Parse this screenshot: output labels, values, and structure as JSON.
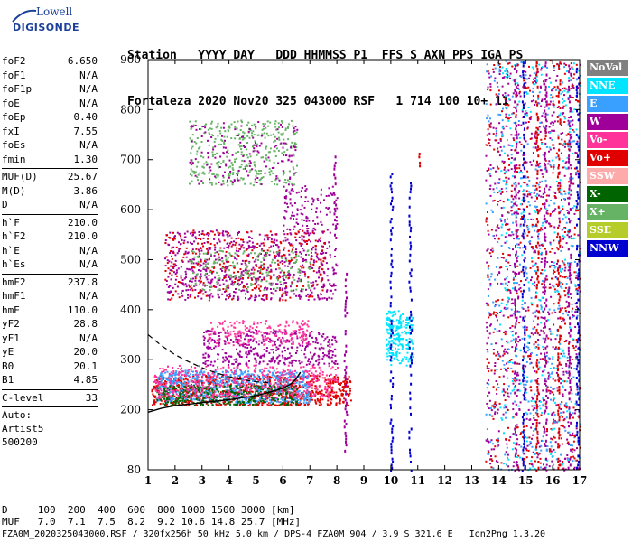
{
  "logo": {
    "top": "Lowell",
    "brand": "DIGISONDE"
  },
  "header": {
    "line1": "Station   YYYY DAY   DDD HHMMSS P1  FFS S AXN PPS IGA PS",
    "line2": "Fortaleza 2020 Nov20 325 043000 RSF   1 714 100 10+ 11"
  },
  "params": {
    "group1": [
      {
        "k": "foF2",
        "v": "6.650"
      },
      {
        "k": "foF1",
        "v": "N/A"
      },
      {
        "k": "foF1p",
        "v": "N/A"
      },
      {
        "k": "foE",
        "v": "N/A"
      },
      {
        "k": "foEp",
        "v": "0.40"
      },
      {
        "k": "fxI",
        "v": "7.55"
      },
      {
        "k": "foEs",
        "v": "N/A"
      },
      {
        "k": "fmin",
        "v": "1.30"
      }
    ],
    "group2": [
      {
        "k": "MUF(D)",
        "v": "25.67"
      },
      {
        "k": "M(D)",
        "v": "3.86"
      },
      {
        "k": "D",
        "v": "N/A"
      }
    ],
    "group3": [
      {
        "k": "h`F",
        "v": "210.0"
      },
      {
        "k": "h`F2",
        "v": "210.0"
      },
      {
        "k": "h`E",
        "v": "N/A"
      },
      {
        "k": "h`Es",
        "v": "N/A"
      }
    ],
    "group4": [
      {
        "k": "hmF2",
        "v": "237.8"
      },
      {
        "k": "hmF1",
        "v": "N/A"
      },
      {
        "k": "hmE",
        "v": "110.0"
      },
      {
        "k": "yF2",
        "v": "28.8"
      },
      {
        "k": "yF1",
        "v": "N/A"
      },
      {
        "k": "yE",
        "v": "20.0"
      },
      {
        "k": "B0",
        "v": "20.1"
      },
      {
        "k": "B1",
        "v": "4.85"
      }
    ],
    "clevel": {
      "k": "C-level",
      "v": "33"
    },
    "auto": [
      "Auto:",
      "Artist5",
      "500200"
    ]
  },
  "legend": [
    {
      "label": "NoVal",
      "color": "#808080"
    },
    {
      "label": "NNE",
      "color": "#00e5ff"
    },
    {
      "label": "E",
      "color": "#3aa0ff"
    },
    {
      "label": "W",
      "color": "#a0009a"
    },
    {
      "label": "Vo-",
      "color": "#ff3399"
    },
    {
      "label": "Vo+",
      "color": "#e00000"
    },
    {
      "label": "SSW",
      "color": "#ffaaaa"
    },
    {
      "label": "X-",
      "color": "#006400"
    },
    {
      "label": "X+",
      "color": "#66b366"
    },
    {
      "label": "SSE",
      "color": "#b5cc2a"
    },
    {
      "label": "NNW",
      "color": "#0000d0"
    }
  ],
  "bottom": {
    "dline": "D     100  200  400  600  800 1000 1500 3000 [km]",
    "mufline": "MUF   7.0  7.1  7.5  8.2  9.2 10.6 14.8 25.7 [MHz]"
  },
  "footer": "FZA0M_2020325043000.RSF / 320fx256h 50 kHz 5.0 km / DPS-4 FZA0M 904 / 3.9 S 321.6 E   Ion2Png 1.3.20",
  "chart_data": {
    "type": "scatter",
    "xlim": [
      1,
      17
    ],
    "ylim": [
      80,
      900
    ],
    "x_ticks": [
      1,
      2,
      3,
      4,
      5,
      6,
      7,
      8,
      9,
      10,
      11,
      12,
      13,
      14,
      15,
      16,
      17
    ],
    "y_ticks": [
      80,
      200,
      300,
      400,
      500,
      600,
      700,
      800,
      900
    ],
    "grid": false,
    "legend_position": "right",
    "trace_blobs": [
      {
        "x0": 1.1,
        "x1": 8.5,
        "y0": 210,
        "y1": 270,
        "color": "#e00000",
        "n": 900
      },
      {
        "x0": 1.3,
        "x1": 7.0,
        "y0": 215,
        "y1": 280,
        "color": "#3aa0ff",
        "n": 700
      },
      {
        "x0": 1.3,
        "x1": 6.5,
        "y0": 210,
        "y1": 250,
        "color": "#006400",
        "n": 350
      },
      {
        "x0": 1.2,
        "x1": 8.0,
        "y0": 225,
        "y1": 290,
        "color": "#ff3399",
        "n": 450
      },
      {
        "x0": 3.0,
        "x1": 8.0,
        "y0": 290,
        "y1": 360,
        "color": "#a0009a",
        "n": 400
      },
      {
        "x0": 3.2,
        "x1": 7.0,
        "y0": 330,
        "y1": 380,
        "color": "#ff3399",
        "n": 180
      },
      {
        "x0": 1.6,
        "x1": 8.0,
        "y0": 420,
        "y1": 560,
        "color": "#a0009a",
        "n": 700
      },
      {
        "x0": 1.6,
        "x1": 7.5,
        "y0": 420,
        "y1": 560,
        "color": "#e00000",
        "n": 300
      },
      {
        "x0": 2.5,
        "x1": 7.0,
        "y0": 440,
        "y1": 520,
        "color": "#66b366",
        "n": 200
      },
      {
        "x0": 6.0,
        "x1": 8.0,
        "y0": 560,
        "y1": 650,
        "color": "#a0009a",
        "n": 120
      },
      {
        "x0": 2.5,
        "x1": 6.5,
        "y0": 650,
        "y1": 780,
        "color": "#66b366",
        "n": 350
      },
      {
        "x0": 2.5,
        "x1": 6.5,
        "y0": 650,
        "y1": 780,
        "color": "#a0009a",
        "n": 150
      },
      {
        "x0": 9.8,
        "x1": 10.8,
        "y0": 290,
        "y1": 400,
        "color": "#00e5ff",
        "n": 220
      },
      {
        "x0": 13.5,
        "x1": 17.0,
        "y0": 80,
        "y1": 900,
        "color": "#a0009a",
        "n": 900
      },
      {
        "x0": 13.5,
        "x1": 17.0,
        "y0": 80,
        "y1": 900,
        "color": "#3aa0ff",
        "n": 500
      },
      {
        "x0": 13.5,
        "x1": 17.0,
        "y0": 80,
        "y1": 900,
        "color": "#e00000",
        "n": 500
      },
      {
        "x0": 14.0,
        "x1": 17.0,
        "y0": 80,
        "y1": 900,
        "color": "#00e5ff",
        "n": 300
      }
    ],
    "vertical_streaks": [
      {
        "x": 10.0,
        "y0": 80,
        "y1": 680,
        "color": "#0000d0"
      },
      {
        "x": 7.9,
        "y0": 540,
        "y1": 720,
        "color": "#a0009a"
      },
      {
        "x": 8.3,
        "y0": 120,
        "y1": 480,
        "color": "#a0009a"
      },
      {
        "x": 10.7,
        "y0": 80,
        "y1": 660,
        "color": "#0000d0"
      },
      {
        "x": 11.0,
        "y0": 690,
        "y1": 730,
        "color": "#e00000"
      },
      {
        "x": 14.6,
        "y0": 80,
        "y1": 900,
        "color": "#a0009a"
      },
      {
        "x": 14.9,
        "y0": 80,
        "y1": 900,
        "color": "#0000d0"
      },
      {
        "x": 15.4,
        "y0": 80,
        "y1": 900,
        "color": "#e00000"
      },
      {
        "x": 15.7,
        "y0": 80,
        "y1": 900,
        "color": "#a0009a"
      },
      {
        "x": 16.2,
        "y0": 80,
        "y1": 900,
        "color": "#e00000"
      },
      {
        "x": 16.6,
        "y0": 80,
        "y1": 900,
        "color": "#a0009a"
      },
      {
        "x": 16.9,
        "y0": 80,
        "y1": 900,
        "color": "#0000d0"
      }
    ],
    "profile_curve": [
      [
        1.0,
        195
      ],
      [
        1.5,
        203
      ],
      [
        2.0,
        208
      ],
      [
        3.0,
        214
      ],
      [
        4.0,
        220
      ],
      [
        5.0,
        228
      ],
      [
        5.5,
        235
      ],
      [
        6.0,
        243
      ],
      [
        6.3,
        252
      ],
      [
        6.5,
        262
      ],
      [
        6.65,
        275
      ]
    ],
    "dashed_curve": [
      [
        1.0,
        350
      ],
      [
        1.5,
        328
      ],
      [
        2.0,
        310
      ],
      [
        2.5,
        296
      ],
      [
        3.0,
        284
      ],
      [
        3.5,
        274
      ],
      [
        4.0,
        266
      ],
      [
        4.5,
        260
      ],
      [
        5.0,
        256
      ],
      [
        5.5,
        254
      ]
    ]
  }
}
